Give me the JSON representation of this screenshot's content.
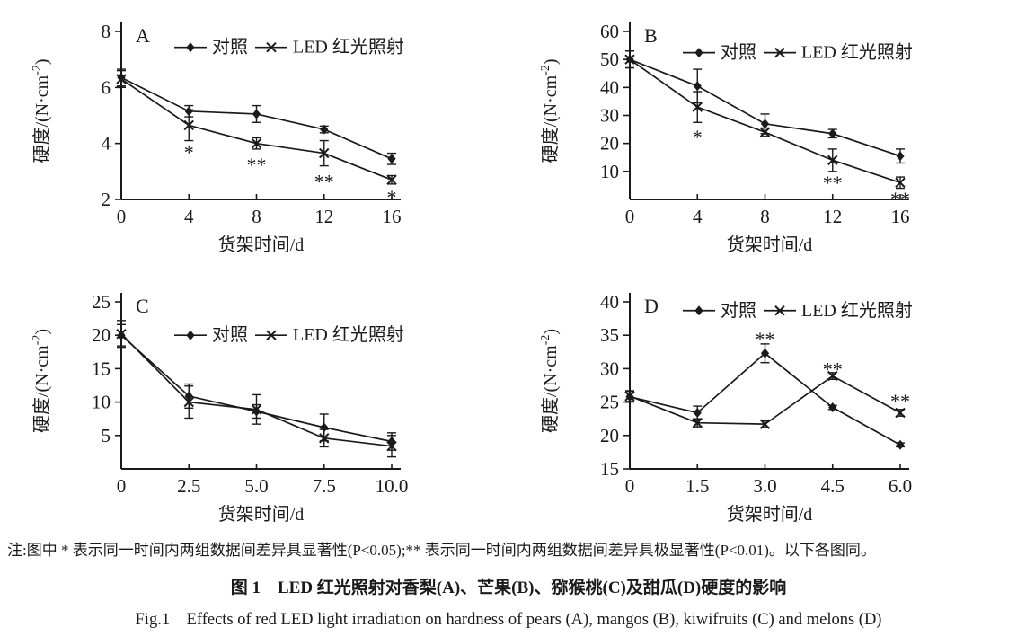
{
  "figure": {
    "ink_color": "#1a1a1a",
    "background_color": "#ffffff",
    "note": "注:图中 * 表示同一时间内两组数据间差异具显著性(P<0.05);** 表示同一时间内两组数据间差异具极显著性(P<0.01)。以下各图同。",
    "caption_zh": "图 1　LED 红光照射对香梨(A)、芒果(B)、猕猴桃(C)及甜瓜(D)硬度的影响",
    "caption_en": "Fig.1　Effects of red LED light irradiation on hardness of pears (A), mangos (B), kiwifruits (C) and melons (D)"
  },
  "chart_data": [
    {
      "type": "line",
      "panel": "A",
      "subject_en": "pears",
      "xlabel": "货架时间/d",
      "ylabel": "硬度/(N·cm⁻²)",
      "xlim": [
        0,
        16
      ],
      "ylim": [
        2,
        8
      ],
      "xtick_vals": [
        0,
        4,
        8,
        12,
        16
      ],
      "xtick_labels": [
        "0",
        "4",
        "8",
        "12",
        "16"
      ],
      "ytick_vals": [
        2,
        4,
        6,
        8
      ],
      "ytick_labels": [
        "2",
        "4",
        "6",
        "8"
      ],
      "grid": false,
      "legend_position": "top-right-inside",
      "legend_y_frac": 0.1,
      "series": [
        {
          "name": "对照",
          "marker": "diamond",
          "x": [
            0,
            4,
            8,
            12,
            16
          ],
          "y": [
            6.35,
            5.15,
            5.05,
            4.5,
            3.45
          ],
          "err": [
            0.3,
            0.2,
            0.3,
            0.12,
            0.2
          ]
        },
        {
          "name": "LED 红光照射",
          "marker": "x",
          "x": [
            0,
            4,
            8,
            12,
            16
          ],
          "y": [
            6.3,
            4.65,
            4.0,
            3.65,
            2.7
          ],
          "err": [
            0.3,
            0.55,
            0.2,
            0.45,
            0.15
          ]
        }
      ],
      "annotations": [
        {
          "x": 4,
          "y": 3.8,
          "text": "*"
        },
        {
          "x": 8,
          "y": 3.35,
          "text": "**"
        },
        {
          "x": 12,
          "y": 2.75,
          "text": "**"
        },
        {
          "x": 16,
          "y": 2.2,
          "text": "*"
        }
      ]
    },
    {
      "type": "line",
      "panel": "B",
      "subject_en": "mangos",
      "xlabel": "货架时间/d",
      "ylabel": "硬度/(N·cm⁻²)",
      "xlim": [
        0,
        16
      ],
      "ylim": [
        0,
        60
      ],
      "xtick_vals": [
        0,
        4,
        8,
        12,
        16
      ],
      "xtick_labels": [
        "0",
        "4",
        "8",
        "12",
        "16"
      ],
      "ytick_vals": [
        10,
        20,
        30,
        40,
        50,
        60
      ],
      "ytick_labels": [
        "10",
        "20",
        "30",
        "40",
        "50",
        "60"
      ],
      "grid": false,
      "legend_position": "top-right-inside",
      "legend_y_frac": 0.13,
      "series": [
        {
          "name": "对照",
          "marker": "diamond",
          "x": [
            0,
            4,
            8,
            12,
            16
          ],
          "y": [
            50,
            40.5,
            27,
            23.5,
            15.5
          ],
          "err": [
            3,
            6,
            3.5,
            1.5,
            2.5
          ]
        },
        {
          "name": "LED 红光照射",
          "marker": "x",
          "x": [
            0,
            4,
            8,
            12,
            16
          ],
          "y": [
            50,
            33,
            24,
            14,
            6
          ],
          "err": [
            3,
            5.5,
            1.5,
            4,
            2
          ]
        }
      ],
      "annotations": [
        {
          "x": 4,
          "y": 23.5,
          "text": "*"
        },
        {
          "x": 12,
          "y": 7,
          "text": "**"
        },
        {
          "x": 16,
          "y": 1.3,
          "text": "**"
        }
      ]
    },
    {
      "type": "line",
      "panel": "C",
      "subject_en": "kiwifruits",
      "xlabel": "货架时间/d",
      "ylabel": "硬度/(N·cm⁻²)",
      "xlim": [
        0,
        10
      ],
      "ylim": [
        0,
        25
      ],
      "xtick_vals": [
        0,
        2.5,
        5.0,
        7.5,
        10.0
      ],
      "xtick_labels": [
        "0",
        "2.5",
        "5.0",
        "7.5",
        "10.0"
      ],
      "ytick_vals": [
        5,
        10,
        15,
        20,
        25
      ],
      "ytick_labels": [
        "5",
        "10",
        "15",
        "20",
        "25"
      ],
      "grid": false,
      "legend_position": "top-right-inside",
      "legend_y_frac": 0.2,
      "series": [
        {
          "name": "对照",
          "marker": "diamond",
          "x": [
            0,
            2.5,
            5.0,
            7.5,
            10.0
          ],
          "y": [
            20,
            10.9,
            8.6,
            6.2,
            4.1
          ],
          "err": [
            1.6,
            1.8,
            1.0,
            2.0,
            1.3
          ]
        },
        {
          "name": "LED 红光照射",
          "marker": "x",
          "x": [
            0,
            2.5,
            5.0,
            7.5,
            10.0
          ],
          "y": [
            20.2,
            10.0,
            8.9,
            4.6,
            3.4
          ],
          "err": [
            2.0,
            2.4,
            2.2,
            1.3,
            1.6
          ]
        }
      ],
      "annotations": []
    },
    {
      "type": "line",
      "panel": "D",
      "subject_en": "melons",
      "xlabel": "货架时间/d",
      "ylabel": "硬度/(N·cm⁻²)",
      "xlim": [
        0,
        6
      ],
      "ylim": [
        15,
        40
      ],
      "xtick_vals": [
        0,
        1.5,
        3.0,
        4.5,
        6.0
      ],
      "xtick_labels": [
        "0",
        "1.5",
        "3.0",
        "4.5",
        "6.0"
      ],
      "ytick_vals": [
        15,
        20,
        25,
        30,
        35,
        40
      ],
      "ytick_labels": [
        "15",
        "20",
        "25",
        "30",
        "35",
        "40"
      ],
      "grid": false,
      "legend_position": "top-right-inside",
      "legend_y_frac": 0.06,
      "series": [
        {
          "name": "对照",
          "marker": "diamond",
          "x": [
            0,
            1.5,
            3.0,
            4.5,
            6.0
          ],
          "y": [
            25.8,
            23.4,
            32.3,
            24.2,
            18.6
          ],
          "err": [
            0.8,
            1.0,
            1.4,
            0.3,
            0.3
          ]
        },
        {
          "name": "LED 红光照射",
          "marker": "x",
          "x": [
            0,
            1.5,
            3.0,
            4.5,
            6.0
          ],
          "y": [
            25.9,
            21.9,
            21.7,
            28.9,
            23.4
          ],
          "err": [
            0.8,
            0.6,
            0.5,
            0.5,
            0.5
          ]
        }
      ],
      "annotations": [
        {
          "x": 3.0,
          "y": 34.9,
          "text": "**"
        },
        {
          "x": 4.5,
          "y": 30.4,
          "text": "**"
        },
        {
          "x": 6.0,
          "y": 25.6,
          "text": "**"
        }
      ]
    }
  ]
}
